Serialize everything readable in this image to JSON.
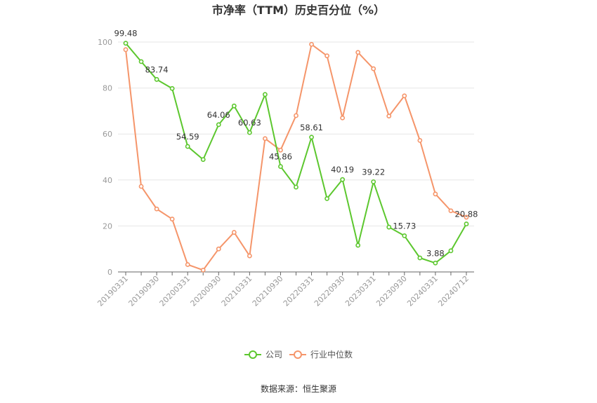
{
  "chart_data": {
    "type": "line",
    "title": "市净率（TTM）历史百分位（%）",
    "source": "数据来源：恒生聚源",
    "ylim": [
      0,
      100
    ],
    "yticks": [
      0,
      20,
      40,
      60,
      80,
      100
    ],
    "x_tick_labels": [
      "20190331",
      "20190930",
      "20200331",
      "20200930",
      "20210331",
      "20210930",
      "20220331",
      "20220930",
      "20230331",
      "20230930",
      "20240331",
      "20240712"
    ],
    "x": [
      "20190331",
      "20190630",
      "20190930",
      "20191231",
      "20200331",
      "20200630",
      "20200930",
      "20201231",
      "20210331",
      "20210630",
      "20210930",
      "20211231",
      "20220331",
      "20220630",
      "20220930",
      "20221231",
      "20230331",
      "20230630",
      "20230930",
      "20231231",
      "20240331",
      "20240630",
      "20240712"
    ],
    "legend_position": "bottom-center",
    "series": [
      {
        "name": "公司",
        "color": "#5cc72e",
        "values": [
          99.48,
          91.5,
          83.74,
          79.8,
          54.59,
          48.9,
          64.06,
          72.2,
          60.63,
          77.2,
          45.86,
          36.9,
          58.61,
          31.9,
          40.19,
          11.6,
          39.22,
          19.5,
          15.73,
          6.1,
          3.88,
          9.2,
          20.88
        ],
        "labels": {
          "0": "99.48",
          "2": "83.74",
          "4": "54.59",
          "6": "64.06",
          "8": "60.63",
          "10": "45.86",
          "12": "58.61",
          "14": "40.19",
          "16": "39.22",
          "18": "15.73",
          "20": "3.88",
          "22": "20.88"
        }
      },
      {
        "name": "行业中位数",
        "color": "#f5956a",
        "values": [
          96.7,
          37.2,
          27.4,
          23.0,
          3.2,
          0.8,
          10.0,
          17.2,
          7.0,
          58.0,
          53.0,
          68.0,
          99.0,
          94.0,
          67.0,
          95.5,
          88.4,
          67.8,
          76.6,
          57.2,
          33.9,
          26.6,
          23.8
        ]
      }
    ]
  }
}
